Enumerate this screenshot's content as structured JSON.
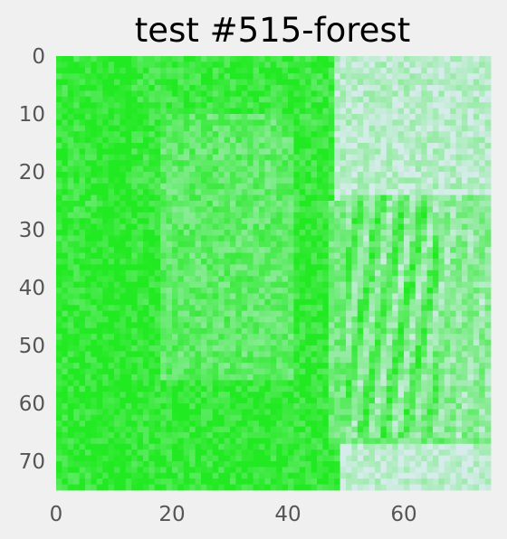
{
  "chart_data": {
    "type": "heatmap",
    "title": "test #515-forest",
    "xlabel": "",
    "ylabel": "",
    "xlim": [
      0,
      74
    ],
    "ylim": [
      74,
      0
    ],
    "x_ticks": [
      0,
      20,
      40,
      60
    ],
    "y_ticks": [
      0,
      10,
      20,
      30,
      40,
      50,
      60,
      70
    ],
    "grid": false,
    "colormap": {
      "low": "#d5ecea",
      "high": "#22ea22"
    },
    "note": "Raster of 75x75 cells; values 0..1 (1 = bright green, 0 = pale cyan-white).",
    "features": [
      {
        "region": [
          48,
          74,
          0,
          24
        ],
        "value": 0.15
      },
      {
        "region": [
          49,
          74,
          66,
          74
        ],
        "value": 0.12
      },
      {
        "region": [
          38,
          44,
          52,
          62
        ],
        "value": 0.25
      },
      {
        "region": [
          0,
          47,
          28,
          74
        ],
        "value": 0.92
      },
      {
        "region": [
          7,
          12,
          0,
          74
        ],
        "value": 0.97
      },
      {
        "region": [
          18,
          40,
          10,
          55
        ],
        "value": 0.65
      },
      {
        "region": [
          47,
          74,
          25,
          66
        ],
        "value": 0.55
      }
    ]
  }
}
